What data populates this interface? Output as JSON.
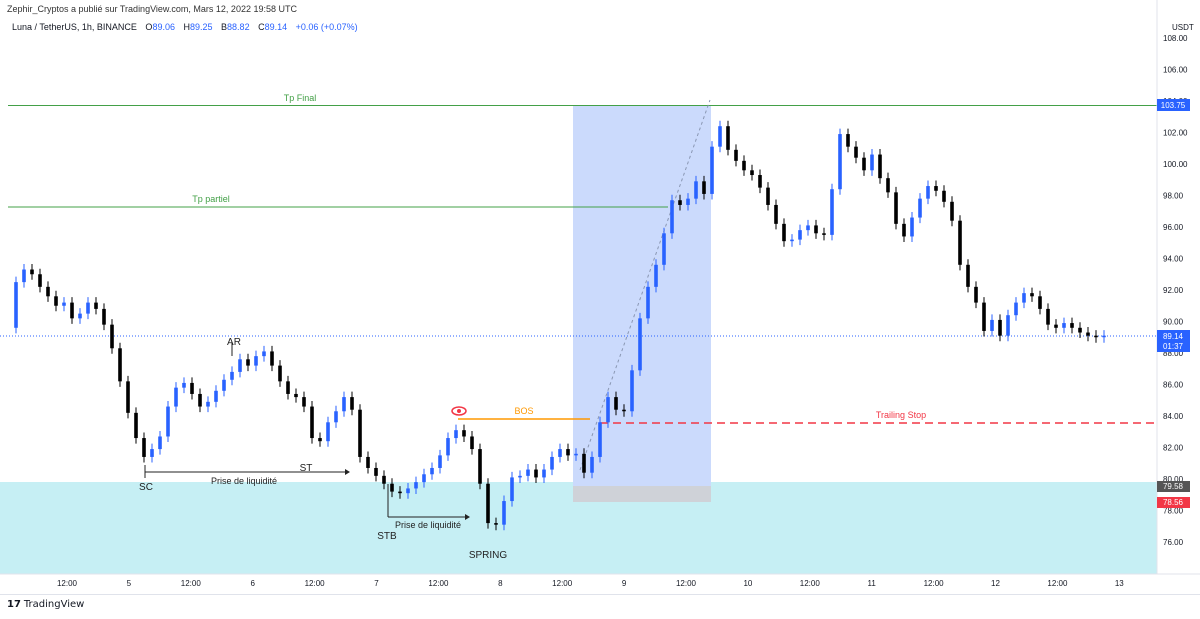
{
  "header": {
    "publish_info": "Zephir_Cryptos a publié sur TradingView.com, Mars 12, 2022 19:58 UTC"
  },
  "symbol": {
    "name": "Luna / TetherUS, 1h, BINANCE",
    "o_label": "O",
    "o": "89.06",
    "h_label": "H",
    "h": "89.25",
    "b_label": "B",
    "b": "88.82",
    "c_label": "C",
    "c": "89.14",
    "change": "+0.06 (+0.07%)"
  },
  "price_axis": {
    "unit": "USDT",
    "ticks": [
      "108.00",
      "106.00",
      "104.00",
      "102.00",
      "100.00",
      "98.00",
      "96.00",
      "94.00",
      "92.00",
      "90.00",
      "88.00",
      "86.00",
      "84.00",
      "82.00",
      "80.00",
      "78.00",
      "76.00"
    ],
    "badges": {
      "tp_final": {
        "value": "103.75",
        "color": "#2962ff"
      },
      "last": {
        "value": "89.14",
        "timer": "01:37",
        "color": "#2962ff"
      },
      "zone": {
        "value": "79.58",
        "color": "#555555"
      },
      "stop": {
        "value": "78.56",
        "color": "#f23645"
      }
    }
  },
  "time_axis": {
    "labels": [
      "12:00",
      "5",
      "12:00",
      "6",
      "12:00",
      "7",
      "12:00",
      "8",
      "12:00",
      "9",
      "12:00",
      "10",
      "12:00",
      "11",
      "12:00",
      "12",
      "12:00",
      "13"
    ]
  },
  "annotations": {
    "tp_final": "Tp Final",
    "tp_partiel": "Tp partiel",
    "bos": "BOS",
    "trailing_stop": "Trailing Stop",
    "ar": "AR",
    "st": "ST",
    "sc": "SC",
    "stb": "STB",
    "spring": "SPRING",
    "liq1": "Prise de liquidité",
    "liq2": "Prise de liquidité"
  },
  "colors": {
    "green_line": "#43a047",
    "orange": "#ff9800",
    "red": "#f23645",
    "blue_zone": "#c9d9fb",
    "cyan_zone": "#c6eff4",
    "up_candle": "#2962ff",
    "down_candle": "#000000"
  },
  "footer": {
    "brand": "TradingView"
  }
}
